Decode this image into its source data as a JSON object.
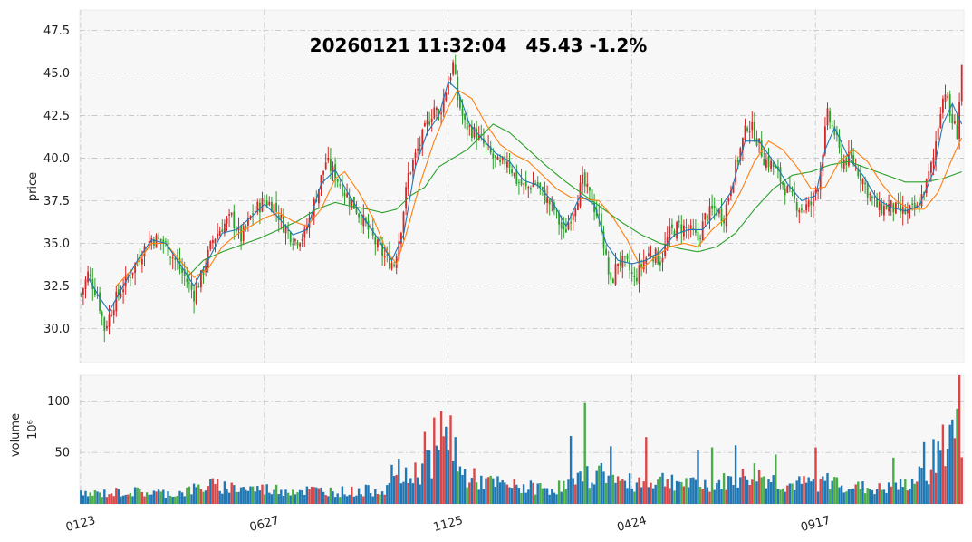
{
  "chart_data": {
    "type": "candlestick",
    "title": "20260121 11:32:04   45.43 -1.2%",
    "price_panel": {
      "ylabel": "price",
      "ylim": [
        28.0,
        48.7
      ],
      "yticks": [
        30.0,
        32.5,
        35.0,
        37.5,
        40.0,
        42.5,
        45.0,
        47.5
      ],
      "ytick_labels": [
        "30.0",
        "32.5",
        "35.0",
        "37.5",
        "40.0",
        "42.5",
        "45.0",
        "47.5"
      ],
      "moving_averages": [
        {
          "color": "#1f77b4",
          "period": "short"
        },
        {
          "color": "#ff7f0e",
          "period": "medium"
        },
        {
          "color": "#2ca02c",
          "period": "long"
        }
      ],
      "up_color": "#d62728",
      "down_color": "#2ca02c",
      "close_path": [
        [
          0,
          32.0
        ],
        [
          3,
          33.2
        ],
        [
          7,
          32.0
        ],
        [
          10,
          30.0
        ],
        [
          14,
          31.5
        ],
        [
          20,
          33.0
        ],
        [
          26,
          34.5
        ],
        [
          30,
          35.3
        ],
        [
          35,
          35.1
        ],
        [
          40,
          34.0
        ],
        [
          45,
          32.8
        ],
        [
          48,
          32.0
        ],
        [
          51,
          33.0
        ],
        [
          56,
          35.2
        ],
        [
          60,
          36.0
        ],
        [
          64,
          36.5
        ],
        [
          68,
          35.3
        ],
        [
          73,
          36.8
        ],
        [
          78,
          37.5
        ],
        [
          82,
          37.2
        ],
        [
          87,
          35.8
        ],
        [
          91,
          35.2
        ],
        [
          95,
          35.5
        ],
        [
          100,
          37.8
        ],
        [
          104,
          39.8
        ],
        [
          108,
          39.0
        ],
        [
          112,
          38.0
        ],
        [
          117,
          37.0
        ],
        [
          122,
          35.8
        ],
        [
          126,
          34.8
        ],
        [
          130,
          34.0
        ],
        [
          133,
          33.8
        ],
        [
          136,
          36.0
        ],
        [
          139,
          39.0
        ],
        [
          143,
          40.5
        ],
        [
          147,
          42.0
        ],
        [
          150,
          43.0
        ],
        [
          152,
          42.5
        ],
        [
          155,
          44.0
        ],
        [
          158,
          45.5
        ],
        [
          160,
          43.5
        ],
        [
          163,
          42.0
        ],
        [
          167,
          41.5
        ],
        [
          171,
          40.8
        ],
        [
          175,
          40.0
        ],
        [
          178,
          39.5
        ],
        [
          181,
          40.0
        ],
        [
          185,
          38.7
        ],
        [
          189,
          38.2
        ],
        [
          193,
          38.6
        ],
        [
          197,
          37.7
        ],
        [
          201,
          37.0
        ],
        [
          205,
          35.5
        ],
        [
          209,
          37.0
        ],
        [
          213,
          38.6
        ],
        [
          217,
          37.5
        ],
        [
          221,
          36.0
        ],
        [
          223,
          34.0
        ],
        [
          225,
          32.5
        ],
        [
          228,
          34.0
        ],
        [
          232,
          33.7
        ],
        [
          235,
          32.8
        ],
        [
          239,
          34.0
        ],
        [
          242,
          34.5
        ],
        [
          246,
          34.0
        ],
        [
          250,
          35.6
        ],
        [
          254,
          36.0
        ],
        [
          258,
          35.8
        ],
        [
          262,
          35.2
        ],
        [
          265,
          36.5
        ],
        [
          269,
          37.0
        ],
        [
          273,
          36.6
        ],
        [
          277,
          39.0
        ],
        [
          280,
          40.5
        ],
        [
          283,
          42.0
        ],
        [
          286,
          41.5
        ],
        [
          290,
          40.0
        ],
        [
          294,
          39.5
        ],
        [
          298,
          38.5
        ],
        [
          302,
          37.6
        ],
        [
          306,
          37.0
        ],
        [
          310,
          37.3
        ],
        [
          313,
          38.5
        ],
        [
          315,
          40.5
        ],
        [
          317,
          42.5
        ],
        [
          320,
          41.5
        ],
        [
          323,
          39.8
        ],
        [
          327,
          40.0
        ],
        [
          331,
          39.0
        ],
        [
          335,
          37.8
        ],
        [
          339,
          37.0
        ],
        [
          343,
          37.2
        ],
        [
          347,
          36.9
        ],
        [
          351,
          36.8
        ],
        [
          355,
          37.0
        ],
        [
          359,
          38.5
        ],
        [
          362,
          40.0
        ],
        [
          365,
          43.0
        ],
        [
          367,
          44.0
        ],
        [
          369,
          42.5
        ],
        [
          372,
          41.5
        ],
        [
          374,
          45.4
        ]
      ],
      "ma_short_path": [
        [
          3,
          33.0
        ],
        [
          8,
          31.8
        ],
        [
          12,
          31.0
        ],
        [
          18,
          32.5
        ],
        [
          24,
          34.0
        ],
        [
          30,
          35.2
        ],
        [
          36,
          35.0
        ],
        [
          42,
          33.8
        ],
        [
          48,
          32.5
        ],
        [
          54,
          34.0
        ],
        [
          60,
          35.6
        ],
        [
          66,
          35.8
        ],
        [
          72,
          36.5
        ],
        [
          78,
          37.3
        ],
        [
          84,
          36.5
        ],
        [
          90,
          35.5
        ],
        [
          96,
          35.8
        ],
        [
          102,
          38.5
        ],
        [
          108,
          39.3
        ],
        [
          114,
          37.8
        ],
        [
          120,
          36.5
        ],
        [
          126,
          35.3
        ],
        [
          132,
          34.0
        ],
        [
          137,
          35.5
        ],
        [
          142,
          39.5
        ],
        [
          147,
          41.5
        ],
        [
          152,
          42.5
        ],
        [
          156,
          44.5
        ],
        [
          160,
          44.0
        ],
        [
          165,
          42.0
        ],
        [
          170,
          41.2
        ],
        [
          176,
          40.3
        ],
        [
          182,
          39.8
        ],
        [
          188,
          38.7
        ],
        [
          194,
          38.4
        ],
        [
          200,
          37.5
        ],
        [
          206,
          36.0
        ],
        [
          212,
          37.8
        ],
        [
          218,
          37.3
        ],
        [
          223,
          35.0
        ],
        [
          228,
          34.0
        ],
        [
          234,
          33.8
        ],
        [
          240,
          34.0
        ],
        [
          246,
          34.5
        ],
        [
          252,
          35.5
        ],
        [
          258,
          35.8
        ],
        [
          264,
          35.8
        ],
        [
          270,
          36.8
        ],
        [
          276,
          38.0
        ],
        [
          282,
          41.0
        ],
        [
          288,
          41.0
        ],
        [
          294,
          39.8
        ],
        [
          300,
          38.5
        ],
        [
          306,
          37.5
        ],
        [
          312,
          37.8
        ],
        [
          316,
          40.5
        ],
        [
          320,
          41.8
        ],
        [
          326,
          40.0
        ],
        [
          332,
          39.0
        ],
        [
          338,
          37.6
        ],
        [
          344,
          37.1
        ],
        [
          350,
          36.9
        ],
        [
          356,
          37.2
        ],
        [
          362,
          39.2
        ],
        [
          366,
          42.0
        ],
        [
          370,
          43.2
        ],
        [
          374,
          42.0
        ]
      ],
      "ma_medium_path": [
        [
          15,
          32.5
        ],
        [
          22,
          33.5
        ],
        [
          30,
          35.0
        ],
        [
          36,
          35.0
        ],
        [
          42,
          34.0
        ],
        [
          48,
          33.0
        ],
        [
          54,
          33.5
        ],
        [
          60,
          34.8
        ],
        [
          66,
          35.5
        ],
        [
          72,
          36.0
        ],
        [
          78,
          36.5
        ],
        [
          84,
          36.8
        ],
        [
          90,
          36.3
        ],
        [
          96,
          36.0
        ],
        [
          102,
          37.0
        ],
        [
          108,
          38.8
        ],
        [
          112,
          39.2
        ],
        [
          118,
          38.0
        ],
        [
          124,
          36.5
        ],
        [
          130,
          34.5
        ],
        [
          134,
          33.8
        ],
        [
          138,
          35.5
        ],
        [
          144,
          38.5
        ],
        [
          150,
          41.0
        ],
        [
          156,
          43.0
        ],
        [
          160,
          44.0
        ],
        [
          166,
          43.5
        ],
        [
          172,
          42.0
        ],
        [
          178,
          40.8
        ],
        [
          184,
          40.2
        ],
        [
          190,
          39.8
        ],
        [
          196,
          39.0
        ],
        [
          202,
          38.2
        ],
        [
          208,
          37.7
        ],
        [
          214,
          37.6
        ],
        [
          220,
          37.5
        ],
        [
          226,
          36.5
        ],
        [
          232,
          35.2
        ],
        [
          238,
          33.5
        ],
        [
          244,
          34.2
        ],
        [
          250,
          34.8
        ],
        [
          256,
          35.0
        ],
        [
          262,
          34.8
        ],
        [
          268,
          35.8
        ],
        [
          274,
          36.5
        ],
        [
          280,
          38.0
        ],
        [
          286,
          39.8
        ],
        [
          292,
          41.0
        ],
        [
          298,
          40.5
        ],
        [
          304,
          39.5
        ],
        [
          310,
          38.2
        ],
        [
          316,
          38.3
        ],
        [
          322,
          39.8
        ],
        [
          328,
          40.5
        ],
        [
          334,
          39.8
        ],
        [
          340,
          38.5
        ],
        [
          346,
          37.5
        ],
        [
          352,
          37.0
        ],
        [
          358,
          37.0
        ],
        [
          364,
          38.0
        ],
        [
          370,
          40.0
        ],
        [
          374,
          41.2
        ]
      ],
      "ma_long_path": [
        [
          45,
          33.0
        ],
        [
          52,
          34.0
        ],
        [
          60,
          34.5
        ],
        [
          68,
          34.9
        ],
        [
          76,
          35.3
        ],
        [
          84,
          35.8
        ],
        [
          92,
          36.3
        ],
        [
          100,
          37.0
        ],
        [
          108,
          37.4
        ],
        [
          114,
          37.2
        ],
        [
          122,
          37.0
        ],
        [
          128,
          36.8
        ],
        [
          134,
          37.0
        ],
        [
          140,
          37.8
        ],
        [
          146,
          38.3
        ],
        [
          152,
          39.5
        ],
        [
          158,
          40.0
        ],
        [
          164,
          40.5
        ],
        [
          170,
          41.3
        ],
        [
          175,
          42.0
        ],
        [
          182,
          41.5
        ],
        [
          190,
          40.5
        ],
        [
          198,
          39.5
        ],
        [
          206,
          38.6
        ],
        [
          214,
          37.8
        ],
        [
          222,
          37.0
        ],
        [
          230,
          36.2
        ],
        [
          238,
          35.5
        ],
        [
          246,
          35.0
        ],
        [
          254,
          34.7
        ],
        [
          262,
          34.5
        ],
        [
          270,
          34.8
        ],
        [
          278,
          35.6
        ],
        [
          286,
          37.0
        ],
        [
          294,
          38.2
        ],
        [
          302,
          39.0
        ],
        [
          310,
          39.2
        ],
        [
          318,
          39.6
        ],
        [
          326,
          39.8
        ],
        [
          334,
          39.4
        ],
        [
          342,
          39.0
        ],
        [
          350,
          38.6
        ],
        [
          358,
          38.6
        ],
        [
          366,
          38.8
        ],
        [
          374,
          39.2
        ]
      ]
    },
    "volume_panel": {
      "ylabel": "volume",
      "ylabel_unit": "10⁶",
      "ylim": [
        0,
        125
      ],
      "yticks": [
        50,
        100
      ],
      "ytick_labels": [
        "50",
        "100"
      ],
      "base_color": "#1f77b4",
      "up_color": "#d62728",
      "down_color": "#2ca02c",
      "profile": [
        [
          0,
          9
        ],
        [
          20,
          12
        ],
        [
          40,
          10
        ],
        [
          55,
          18
        ],
        [
          70,
          15
        ],
        [
          85,
          14
        ],
        [
          100,
          13
        ],
        [
          115,
          12
        ],
        [
          128,
          14
        ],
        [
          136,
          22
        ],
        [
          142,
          30
        ],
        [
          148,
          42
        ],
        [
          154,
          55
        ],
        [
          158,
          40
        ],
        [
          162,
          28
        ],
        [
          170,
          22
        ],
        [
          180,
          18
        ],
        [
          190,
          16
        ],
        [
          200,
          15
        ],
        [
          210,
          20
        ],
        [
          216,
          28
        ],
        [
          222,
          30
        ],
        [
          230,
          20
        ],
        [
          240,
          22
        ],
        [
          250,
          24
        ],
        [
          260,
          18
        ],
        [
          270,
          20
        ],
        [
          280,
          24
        ],
        [
          286,
          30
        ],
        [
          292,
          24
        ],
        [
          300,
          18
        ],
        [
          310,
          20
        ],
        [
          320,
          22
        ],
        [
          330,
          16
        ],
        [
          340,
          14
        ],
        [
          350,
          18
        ],
        [
          358,
          28
        ],
        [
          364,
          45
        ],
        [
          369,
          60
        ],
        [
          374,
          70
        ]
      ],
      "spikes": [
        [
          146,
          70
        ],
        [
          150,
          84
        ],
        [
          153,
          90
        ],
        [
          155,
          75
        ],
        [
          157,
          86
        ],
        [
          159,
          65
        ],
        [
          214,
          98
        ],
        [
          208,
          66
        ],
        [
          225,
          56
        ],
        [
          240,
          65
        ],
        [
          262,
          52
        ],
        [
          268,
          55
        ],
        [
          278,
          57
        ],
        [
          295,
          48
        ],
        [
          312,
          55
        ],
        [
          345,
          45
        ],
        [
          358,
          60
        ],
        [
          362,
          63
        ],
        [
          366,
          77
        ],
        [
          370,
          82
        ],
        [
          373,
          125
        ],
        [
          132,
          38
        ],
        [
          135,
          44
        ]
      ]
    },
    "x_axis": {
      "n_bars": 375,
      "tick_labels": [
        "0123",
        "0627",
        "1125",
        "0424",
        "0917"
      ],
      "tick_index": [
        0,
        78,
        156,
        234,
        312
      ],
      "label_rotation": -15,
      "grid": true
    }
  }
}
